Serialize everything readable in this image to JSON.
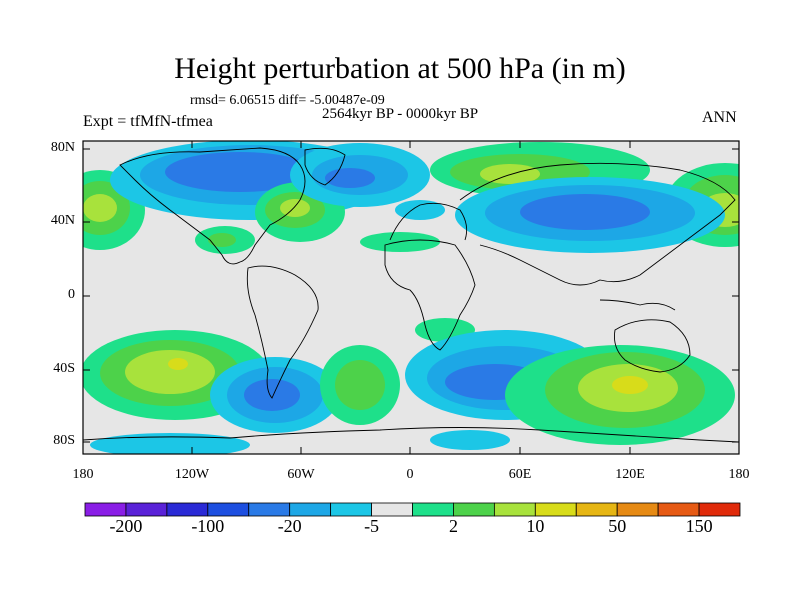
{
  "title": "Height perturbation at 500 hPa (in m)",
  "stats_line": "rmsd= 6.06515 diff= -5.00487e-09",
  "period": "2564kyr BP - 0000kyr BP",
  "experiment": "Expt = tfMfN-tfmea",
  "season": "ANN",
  "lat_labels": [
    "80N",
    "40N",
    "0",
    "40S",
    "80S"
  ],
  "lon_labels": [
    "180",
    "120W",
    "60W",
    "0",
    "60E",
    "120E",
    "180"
  ],
  "colorbar": {
    "colors": [
      "#8a1ee6",
      "#5a22d8",
      "#2a2ad6",
      "#1d4fe0",
      "#2a7ae6",
      "#1da7e6",
      "#1cc6e6",
      "#e6e6e6",
      "#1ee08a",
      "#4dd24a",
      "#a8e23c",
      "#d8dc1a",
      "#e6b614",
      "#e68a14",
      "#e65a14",
      "#e02a0a"
    ],
    "labels": [
      "-200",
      "-100",
      "-20",
      "-5",
      "2",
      "10",
      "50",
      "150"
    ]
  }
}
